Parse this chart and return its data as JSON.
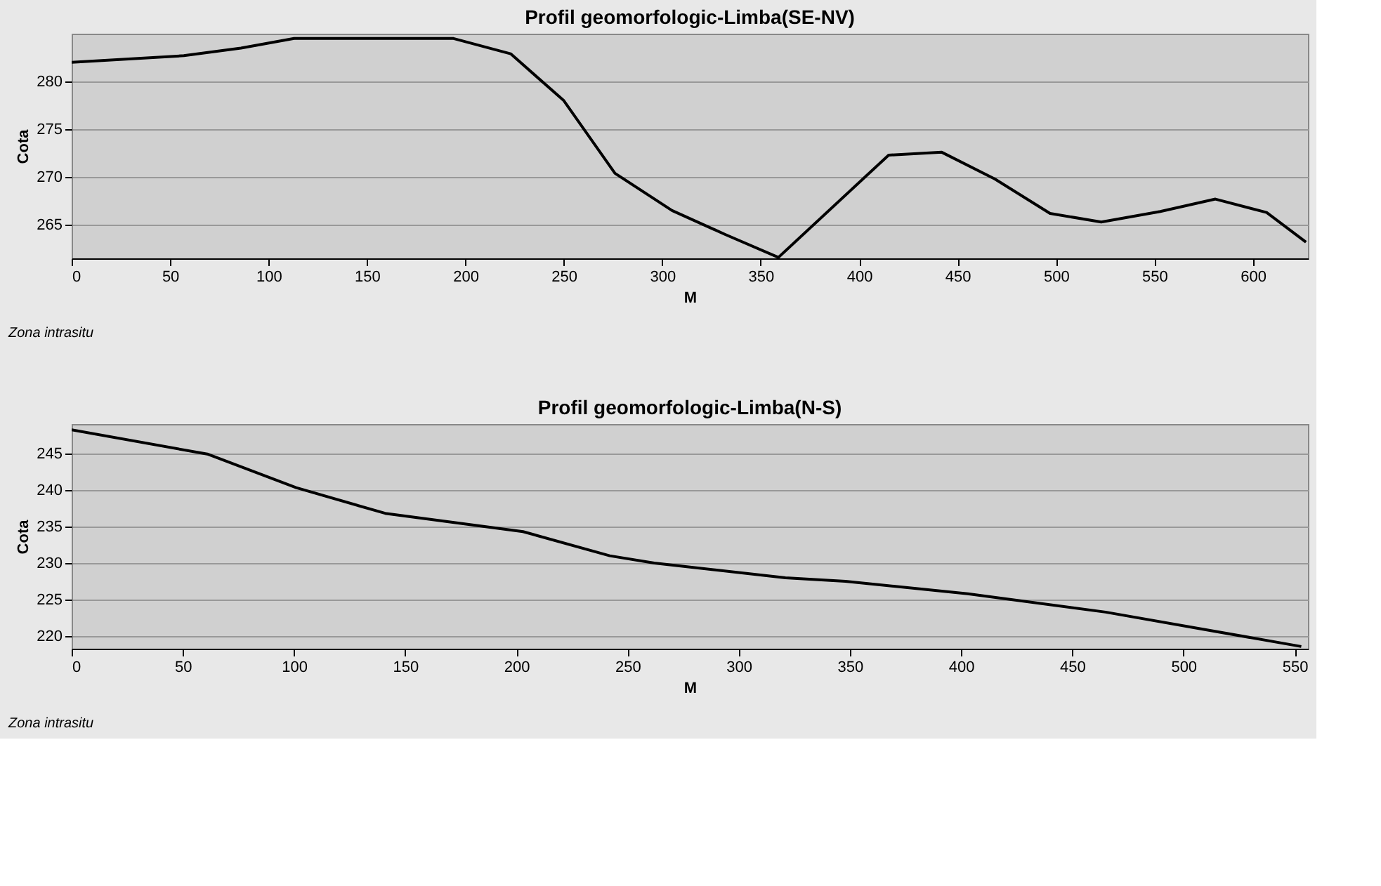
{
  "chart_data": [
    {
      "type": "line",
      "title": "Profil geomorfologic-Limba(SE-NV)",
      "xlabel": "M",
      "ylabel": "Cota",
      "annotations": [
        "Zona intrasitu"
      ],
      "series": [
        {
          "color": "#000000",
          "x": [
            0,
            57,
            86,
            113,
            194,
            223,
            250,
            276,
            305,
            332,
            359,
            415,
            442,
            469,
            497,
            523,
            553,
            581,
            607,
            627
          ],
          "values": [
            282.0,
            282.7,
            283.5,
            284.5,
            284.5,
            282.9,
            278.0,
            270.4,
            266.5,
            264.0,
            261.6,
            272.3,
            272.6,
            269.8,
            266.2,
            265.3,
            266.4,
            267.7,
            266.3,
            263.2
          ]
        }
      ],
      "xlim": [
        0,
        628
      ],
      "xticks": [
        0,
        50,
        100,
        150,
        200,
        250,
        300,
        350,
        400,
        450,
        500,
        550,
        600
      ],
      "ylim": [
        261.5,
        285
      ],
      "yticks": [
        265,
        270,
        275,
        280
      ],
      "grid": "y",
      "marker": "none",
      "line_style": "solid"
    },
    {
      "type": "line",
      "title": "Profil geomorfologic-Limba(N-S)",
      "xlabel": "M",
      "ylabel": "Cota",
      "annotations": [
        "Zona intrasitu"
      ],
      "series": [
        {
          "color": "#000000",
          "x": [
            0,
            61,
            101,
            141,
            203,
            242,
            262,
            321,
            348,
            403,
            465,
            553
          ],
          "values": [
            248.2,
            244.9,
            240.3,
            236.8,
            234.3,
            231.0,
            230.0,
            228.0,
            227.5,
            225.8,
            223.3,
            218.6
          ]
        }
      ],
      "xlim": [
        0,
        556
      ],
      "xticks": [
        0,
        50,
        100,
        150,
        200,
        250,
        300,
        350,
        400,
        450,
        500,
        550
      ],
      "ylim": [
        218.3,
        249
      ],
      "yticks": [
        220,
        225,
        230,
        235,
        240,
        245
      ],
      "grid": "y",
      "marker": "none",
      "line_style": "solid"
    }
  ]
}
